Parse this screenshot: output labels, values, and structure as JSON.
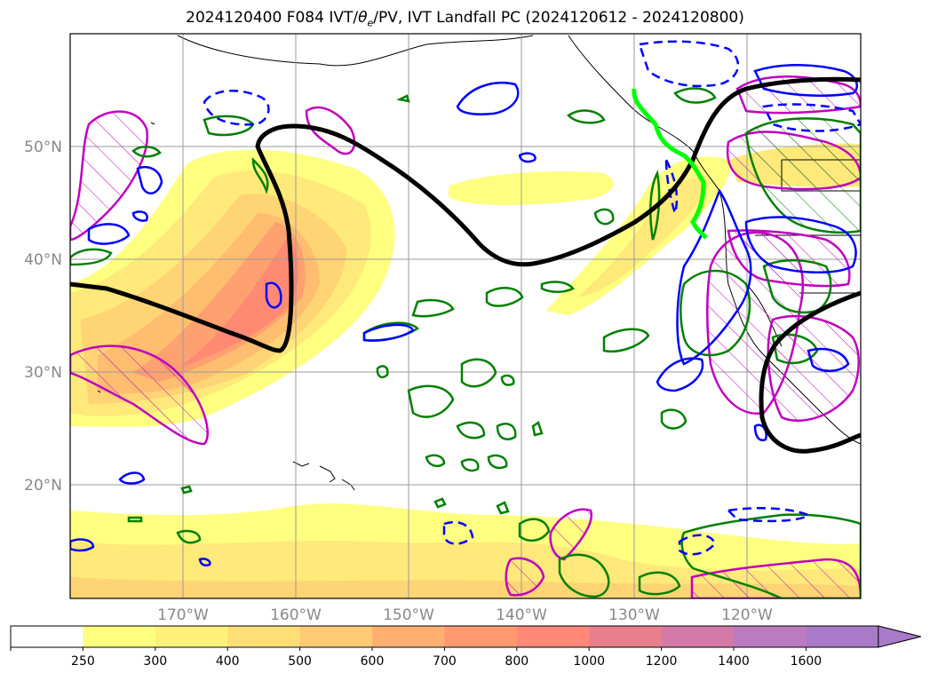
{
  "title": {
    "prefix": "2024120400 F084 IVT/",
    "theta": "θ",
    "sub": "e",
    "suffix": "/PV, IVT Landfall PC (2024120612 - 2024120800)"
  },
  "lon_labels": [
    "170°W",
    "160°W",
    "150°W",
    "140°W",
    "130°W",
    "120°W"
  ],
  "lat_labels": [
    "50°N",
    "40°N",
    "30°N",
    "20°N"
  ],
  "colorbar": {
    "ticks": [
      "250",
      "300",
      "400",
      "500",
      "600",
      "700",
      "800",
      "1000",
      "1200",
      "1400",
      "1600"
    ],
    "colors": [
      "#ffffff",
      "#ffff80",
      "#fff07a",
      "#ffde78",
      "#ffca74",
      "#ffb070",
      "#ff9a70",
      "#ff8878",
      "#e8808c",
      "#d47aa8",
      "#bc7ac0",
      "#a87ac8"
    ]
  },
  "colors": {
    "ivt_fill": [
      "#ffff80",
      "#ffe97a",
      "#ffd474",
      "#ffbd70",
      "#ffa070",
      "#ff8a74"
    ],
    "ridge_line": "#000000",
    "theta_contour": "#008000",
    "pv_contour": "#0000ff",
    "hatch_contour": "#c000c0",
    "landfall_line": "#00ff00"
  }
}
